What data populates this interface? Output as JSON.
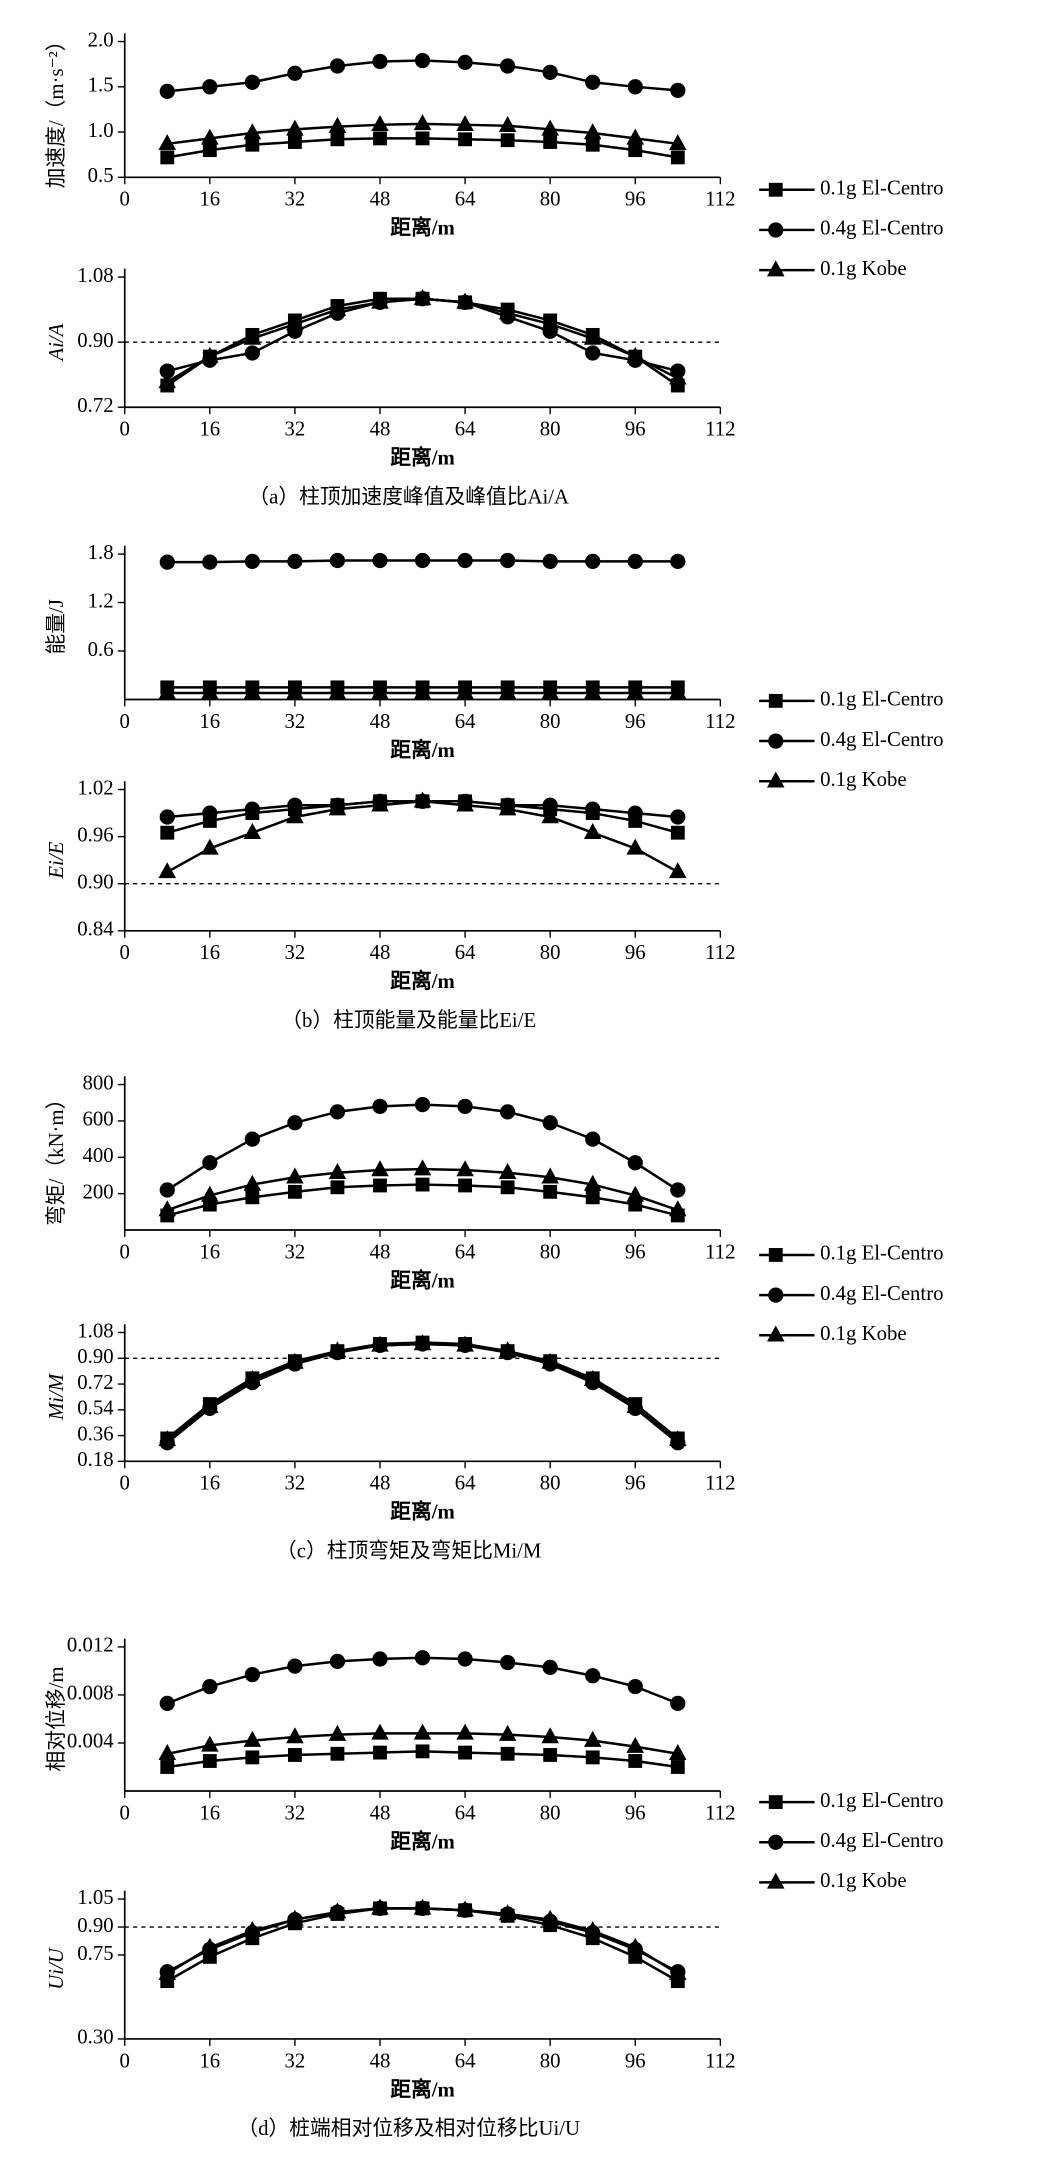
{
  "chart_data": [
    {
      "type": "line",
      "ylabel": "加速度/（m·s⁻²）",
      "xlabel": "距离/m",
      "x": [
        8,
        16,
        24,
        32,
        40,
        48,
        56,
        64,
        72,
        80,
        88,
        96,
        104
      ],
      "xlim": [
        0,
        112
      ],
      "xticks": [
        0,
        16,
        32,
        48,
        64,
        80,
        96,
        112
      ],
      "ylim": [
        0.5,
        2.0
      ],
      "yticks": [
        0.5,
        {
          "value": 1,
          "label": "1.0"
        },
        1.5,
        {
          "value": 2,
          "label": "2.0"
        }
      ],
      "series": [
        {
          "name": "0.1g El-Centro",
          "color": "#000000",
          "marker": "square",
          "values": [
            0.72,
            0.8,
            0.86,
            0.89,
            0.92,
            0.93,
            0.93,
            0.92,
            0.91,
            0.89,
            0.86,
            0.8,
            0.72
          ]
        },
        {
          "name": "0.4g El-Centro",
          "color": "#000000",
          "marker": "circle",
          "values": [
            1.45,
            1.5,
            1.55,
            1.65,
            1.73,
            1.78,
            1.79,
            1.77,
            1.73,
            1.66,
            1.55,
            1.5,
            1.46
          ]
        },
        {
          "name": "0.1g Kobe",
          "color": "#000000",
          "marker": "triangle",
          "values": [
            0.87,
            0.93,
            0.99,
            1.03,
            1.06,
            1.08,
            1.09,
            1.08,
            1.07,
            1.03,
            0.99,
            0.93,
            0.87
          ]
        }
      ]
    },
    {
      "type": "line",
      "ylabel": "Ai/A",
      "xlabel": "距离/m",
      "caption": "（a）柱顶加速度峰值及峰值比Ai/A",
      "x": [
        8,
        16,
        24,
        32,
        40,
        48,
        56,
        64,
        72,
        80,
        88,
        96,
        104
      ],
      "xlim": [
        0,
        112
      ],
      "xticks": [
        0,
        16,
        32,
        48,
        64,
        80,
        96,
        112
      ],
      "ylim": [
        0.72,
        1.08
      ],
      "yticks": [
        0.72,
        {
          "value": 0.9,
          "label": "0.90"
        },
        1.08
      ],
      "reference_line": 0.9,
      "series": [
        {
          "color": "#000000",
          "marker": "square",
          "values": [
            0.78,
            0.86,
            0.92,
            0.96,
            1.0,
            1.02,
            1.02,
            1.01,
            0.99,
            0.96,
            0.92,
            0.86,
            0.78
          ]
        },
        {
          "color": "#000000",
          "marker": "circle",
          "values": [
            0.82,
            0.85,
            0.87,
            0.93,
            0.98,
            1.01,
            1.02,
            1.01,
            0.97,
            0.93,
            0.87,
            0.85,
            0.82
          ]
        },
        {
          "color": "#000000",
          "marker": "triangle",
          "values": [
            0.79,
            0.86,
            0.91,
            0.95,
            0.99,
            1.01,
            1.02,
            1.01,
            0.98,
            0.95,
            0.91,
            0.86,
            0.8
          ]
        }
      ]
    },
    {
      "type": "line",
      "ylabel": "能量/J",
      "xlabel": "距离/m",
      "x": [
        8,
        16,
        24,
        32,
        40,
        48,
        56,
        64,
        72,
        80,
        88,
        96,
        104
      ],
      "xlim": [
        0,
        112
      ],
      "xticks": [
        0,
        16,
        32,
        48,
        64,
        80,
        96,
        112
      ],
      "ylim": [
        0,
        1.8
      ],
      "yticks": [
        0.6,
        1.2,
        1.8
      ],
      "series": [
        {
          "name": "0.1g El-Centro",
          "color": "#000000",
          "marker": "square",
          "values": [
            0.15,
            0.15,
            0.15,
            0.15,
            0.15,
            0.15,
            0.15,
            0.15,
            0.15,
            0.15,
            0.15,
            0.15,
            0.15
          ]
        },
        {
          "name": "0.4g El-Centro",
          "color": "#000000",
          "marker": "circle",
          "values": [
            1.7,
            1.7,
            1.71,
            1.71,
            1.72,
            1.72,
            1.72,
            1.72,
            1.72,
            1.71,
            1.71,
            1.71,
            1.71
          ]
        },
        {
          "name": "0.1g Kobe",
          "color": "#000000",
          "marker": "triangle",
          "values": [
            0.08,
            0.08,
            0.08,
            0.08,
            0.08,
            0.08,
            0.08,
            0.08,
            0.08,
            0.08,
            0.08,
            0.08,
            0.08
          ]
        }
      ]
    },
    {
      "type": "line",
      "ylabel": "Ei/E",
      "xlabel": "距离/m",
      "caption": "（b）柱顶能量及能量比Ei/E",
      "x": [
        8,
        16,
        24,
        32,
        40,
        48,
        56,
        64,
        72,
        80,
        88,
        96,
        104
      ],
      "xlim": [
        0,
        112
      ],
      "xticks": [
        0,
        16,
        32,
        48,
        64,
        80,
        96,
        112
      ],
      "ylim": [
        0.84,
        1.02
      ],
      "yticks": [
        0.84,
        {
          "value": 0.9,
          "label": "0.90"
        },
        0.96,
        1.02
      ],
      "reference_line": 0.9,
      "series": [
        {
          "color": "#000000",
          "marker": "square",
          "values": [
            0.965,
            0.98,
            0.99,
            0.995,
            1.0,
            1.005,
            1.005,
            1.005,
            1.0,
            0.995,
            0.99,
            0.98,
            0.965
          ]
        },
        {
          "color": "#000000",
          "marker": "circle",
          "values": [
            0.985,
            0.99,
            0.995,
            1.0,
            1.0,
            1.005,
            1.005,
            1.005,
            1.0,
            1.0,
            0.995,
            0.99,
            0.985
          ]
        },
        {
          "color": "#000000",
          "marker": "triangle",
          "values": [
            0.915,
            0.945,
            0.965,
            0.985,
            0.995,
            1.0,
            1.005,
            1.0,
            0.995,
            0.985,
            0.965,
            0.945,
            0.915
          ]
        }
      ]
    },
    {
      "type": "line",
      "ylabel": "弯矩/（kN·m）",
      "xlabel": "距离/m",
      "x": [
        8,
        16,
        24,
        32,
        40,
        48,
        56,
        64,
        72,
        80,
        88,
        96,
        104
      ],
      "xlim": [
        0,
        112
      ],
      "xticks": [
        0,
        16,
        32,
        48,
        64,
        80,
        96,
        112
      ],
      "ylim": [
        0,
        800
      ],
      "yticks": [
        200,
        400,
        600,
        800
      ],
      "series": [
        {
          "name": "0.1g El-Centro",
          "color": "#000000",
          "marker": "square",
          "values": [
            80,
            140,
            180,
            210,
            235,
            245,
            250,
            245,
            235,
            210,
            180,
            140,
            80
          ]
        },
        {
          "name": "0.4g El-Centro",
          "color": "#000000",
          "marker": "circle",
          "values": [
            220,
            370,
            500,
            590,
            650,
            680,
            690,
            680,
            650,
            590,
            500,
            370,
            220
          ]
        },
        {
          "name": "0.1g Kobe",
          "color": "#000000",
          "marker": "triangle",
          "values": [
            110,
            190,
            250,
            290,
            315,
            330,
            335,
            330,
            315,
            290,
            250,
            190,
            110
          ]
        }
      ]
    },
    {
      "type": "line",
      "ylabel": "Mi/M",
      "xlabel": "距离/m",
      "caption": "（c）柱顶弯矩及弯矩比Mi/M",
      "x": [
        8,
        16,
        24,
        32,
        40,
        48,
        56,
        64,
        72,
        80,
        88,
        96,
        104
      ],
      "xlim": [
        0,
        112
      ],
      "xticks": [
        0,
        16,
        32,
        48,
        64,
        80,
        96,
        112
      ],
      "ylim": [
        0.18,
        1.08
      ],
      "yticks": [
        0.18,
        0.36,
        0.54,
        0.72,
        {
          "value": 0.9,
          "label": "0.90"
        },
        1.08
      ],
      "reference_line": 0.9,
      "series": [
        {
          "color": "#000000",
          "marker": "square",
          "values": [
            0.34,
            0.58,
            0.76,
            0.88,
            0.95,
            1.0,
            1.01,
            1.0,
            0.95,
            0.88,
            0.76,
            0.58,
            0.34
          ]
        },
        {
          "color": "#000000",
          "marker": "circle",
          "values": [
            0.31,
            0.55,
            0.73,
            0.86,
            0.94,
            0.99,
            1.0,
            0.99,
            0.94,
            0.86,
            0.73,
            0.55,
            0.31
          ]
        },
        {
          "color": "#000000",
          "marker": "triangle",
          "values": [
            0.33,
            0.56,
            0.75,
            0.87,
            0.95,
            0.99,
            1.0,
            0.99,
            0.95,
            0.87,
            0.75,
            0.56,
            0.33
          ]
        }
      ]
    },
    {
      "type": "line",
      "ylabel": "相对位移/m",
      "xlabel": "距离/m",
      "x": [
        8,
        16,
        24,
        32,
        40,
        48,
        56,
        64,
        72,
        80,
        88,
        96,
        104
      ],
      "xlim": [
        0,
        112
      ],
      "xticks": [
        0,
        16,
        32,
        48,
        64,
        80,
        96,
        112
      ],
      "ylim": [
        0,
        0.012
      ],
      "yticks": [
        0.004,
        0.008,
        0.012
      ],
      "series": [
        {
          "name": "0.1g El-Centro",
          "color": "#000000",
          "marker": "square",
          "values": [
            0.002,
            0.0025,
            0.0028,
            0.003,
            0.0031,
            0.0032,
            0.0033,
            0.0032,
            0.0031,
            0.003,
            0.0028,
            0.0025,
            0.002
          ]
        },
        {
          "name": "0.4g El-Centro",
          "color": "#000000",
          "marker": "circle",
          "values": [
            0.0073,
            0.0087,
            0.0097,
            0.0104,
            0.0108,
            0.011,
            0.0111,
            0.011,
            0.0107,
            0.0103,
            0.0096,
            0.0087,
            0.0073
          ]
        },
        {
          "name": "0.1g Kobe",
          "color": "#000000",
          "marker": "triangle",
          "values": [
            0.0031,
            0.0038,
            0.0042,
            0.0045,
            0.0047,
            0.0048,
            0.0048,
            0.0048,
            0.0047,
            0.0045,
            0.0042,
            0.0037,
            0.0031
          ]
        }
      ]
    },
    {
      "type": "line",
      "ylabel": "Ui/U",
      "xlabel": "距离/m",
      "caption": "（d）桩端相对位移及相对位移比Ui/U",
      "x": [
        8,
        16,
        24,
        32,
        40,
        48,
        56,
        64,
        72,
        80,
        88,
        96,
        104
      ],
      "xlim": [
        0,
        112
      ],
      "xticks": [
        0,
        16,
        32,
        48,
        64,
        80,
        96,
        112
      ],
      "ylim": [
        0.3,
        1.05
      ],
      "yticks": [
        {
          "value": 0.3,
          "label": "0.30"
        },
        0.75,
        {
          "value": 0.9,
          "label": "0.90"
        },
        1.05
      ],
      "reference_line": 0.9,
      "series": [
        {
          "color": "#000000",
          "marker": "square",
          "values": [
            0.61,
            0.74,
            0.84,
            0.92,
            0.97,
            1.0,
            1.0,
            0.99,
            0.96,
            0.91,
            0.84,
            0.74,
            0.61
          ]
        },
        {
          "color": "#000000",
          "marker": "circle",
          "values": [
            0.66,
            0.78,
            0.87,
            0.94,
            0.98,
            1.0,
            1.0,
            0.99,
            0.97,
            0.93,
            0.87,
            0.78,
            0.66
          ]
        },
        {
          "color": "#000000",
          "marker": "triangle",
          "values": [
            0.65,
            0.79,
            0.88,
            0.94,
            0.98,
            1.0,
            1.0,
            0.99,
            0.97,
            0.94,
            0.88,
            0.79,
            0.65
          ]
        }
      ]
    }
  ]
}
